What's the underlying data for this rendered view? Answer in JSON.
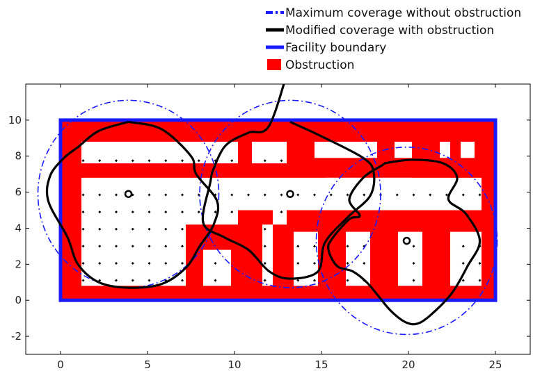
{
  "chart_data": {
    "type": "line",
    "title": "",
    "xlabel": "",
    "ylabel": "",
    "xlim": [
      -2,
      27
    ],
    "ylim": [
      -3,
      12
    ],
    "xticks": [
      0,
      5,
      10,
      15,
      20,
      25
    ],
    "yticks": [
      -2,
      0,
      2,
      4,
      6,
      8,
      10
    ],
    "grid": false,
    "legend_position": "top-right",
    "legend": [
      {
        "label": "Maximum coverage without obstruction",
        "style": "dash-dot",
        "color": "#1a1aff"
      },
      {
        "label": "Modified coverage with obstruction",
        "style": "solid",
        "color": "#000000"
      },
      {
        "label": "Facility boundary",
        "style": "solid",
        "color": "#1a1aff"
      },
      {
        "label": "Obstruction",
        "style": "patch",
        "color": "#ff0000"
      }
    ],
    "facility_boundary": {
      "x": [
        0,
        25
      ],
      "y": [
        0,
        10
      ]
    },
    "obstruction_free_regions": [
      {
        "x": [
          1.2,
          7.2
        ],
        "y": [
          0.8,
          6.8
        ]
      },
      {
        "x": [
          1.2,
          10.2
        ],
        "y": [
          7.6,
          8.8
        ]
      },
      {
        "x": [
          7.2,
          10.2
        ],
        "y": [
          4.2,
          6.8
        ]
      },
      {
        "x": [
          10.2,
          20.2
        ],
        "y": [
          5,
          6.8
        ]
      },
      {
        "x": [
          11,
          13
        ],
        "y": [
          7.6,
          8.8
        ]
      },
      {
        "x": [
          14.6,
          18.2
        ],
        "y": [
          7.9,
          8.8
        ]
      },
      {
        "x": [
          19.2,
          20.2
        ],
        "y": [
          7.9,
          8.8
        ]
      },
      {
        "x": [
          21.8,
          22.4
        ],
        "y": [
          7.9,
          8.8
        ]
      },
      {
        "x": [
          23,
          23.8
        ],
        "y": [
          7.9,
          8.8
        ]
      },
      {
        "x": [
          15.2,
          24.2
        ],
        "y": [
          5,
          6.8
        ]
      },
      {
        "x": [
          8.2,
          9.8
        ],
        "y": [
          0.8,
          2.8
        ]
      },
      {
        "x": [
          11.6,
          12.2
        ],
        "y": [
          0.8,
          4.2
        ]
      },
      {
        "x": [
          12.2,
          13
        ],
        "y": [
          4.2,
          5
        ]
      },
      {
        "x": [
          13.4,
          14.8
        ],
        "y": [
          0.8,
          3.8
        ]
      },
      {
        "x": [
          16.4,
          17.8
        ],
        "y": [
          0.8,
          3.8
        ]
      },
      {
        "x": [
          19.4,
          20.8
        ],
        "y": [
          0.8,
          3.8
        ]
      },
      {
        "x": [
          22.4,
          24.2
        ],
        "y": [
          0.8,
          3.8
        ]
      }
    ],
    "sensor_grid": {
      "x_start": 1.3,
      "x_end": 24.2,
      "x_step": 0.95,
      "y_start": 1.1,
      "y_end": 8.6,
      "y_step": 0.95
    },
    "sensors": [
      {
        "x": 3.9,
        "y": 5.9
      },
      {
        "x": 13.2,
        "y": 5.9
      },
      {
        "x": 19.9,
        "y": 3.3
      }
    ],
    "coverage_radius": 5.2,
    "modified_coverage": [
      {
        "x": [
          3.9,
          5.8,
          7.5,
          7.8,
          9.0,
          8.8,
          8.0,
          7.2,
          5.8,
          3.9,
          2.2,
          1.0,
          0.4,
          -0.7,
          -0.6,
          0.2,
          1.0,
          2.2,
          3.9
        ],
        "y": [
          9.9,
          9.5,
          8.0,
          7.0,
          5.5,
          4.2,
          3.0,
          1.8,
          0.9,
          0.7,
          1.0,
          2.0,
          3.5,
          5.5,
          6.9,
          7.9,
          8.5,
          9.4,
          9.9
        ]
      },
      {
        "x": [
          13.2,
          15.0,
          17.4,
          18.0,
          17.8,
          16.5,
          15.2,
          14.8,
          13.2,
          12.0,
          10.8,
          9.4,
          8.2,
          8.6,
          8.8,
          9.5,
          10.8,
          12.0,
          13.2
        ],
        "y": [
          9.9,
          9.1,
          7.9,
          7.1,
          5.8,
          4.6,
          3.2,
          1.6,
          1.2,
          1.6,
          2.8,
          3.5,
          4.3,
          6.5,
          7.3,
          8.6,
          9.3,
          9.7,
          13.2
        ]
      },
      {
        "x": [
          18.6,
          20.2,
          22.0,
          22.8,
          22.3,
          23.3,
          24.1,
          23.4,
          22.5,
          21.3,
          20.5,
          19.8,
          19.0,
          18.3,
          17.6,
          16.8,
          15.9,
          15.4,
          15.6,
          16.6,
          17.2,
          16.6,
          17.4,
          18.5,
          18.6
        ],
        "y": [
          7.6,
          7.8,
          7.6,
          6.8,
          5.6,
          4.8,
          3.3,
          1.9,
          0.4,
          -0.8,
          -1.3,
          -1.2,
          -0.6,
          0.2,
          1.0,
          1.6,
          1.9,
          2.8,
          3.4,
          4.5,
          4.7,
          5.6,
          6.8,
          7.5,
          7.6
        ]
      }
    ]
  }
}
